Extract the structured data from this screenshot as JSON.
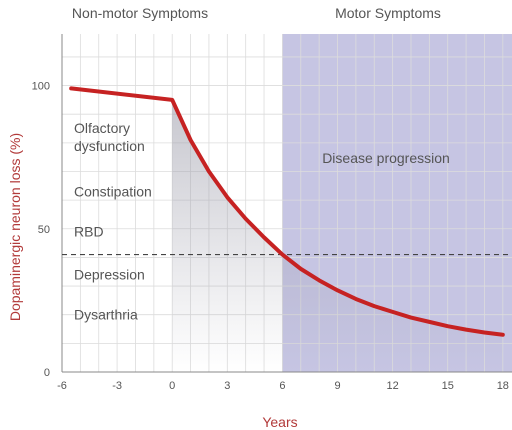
{
  "chart_data": {
    "type": "line",
    "xlabel": "Years",
    "ylabel": "Dopaminergic neuron loss (%)",
    "xlim": [
      -6,
      18.5
    ],
    "ylim": [
      0,
      118
    ],
    "x_ticks": [
      -6,
      -3,
      0,
      3,
      6,
      9,
      12,
      15,
      18
    ],
    "y_ticks": [
      0,
      50,
      100
    ],
    "grid": true,
    "phase_labels": [
      "Non-motor Symptoms",
      "Motor Symptoms"
    ],
    "shaded_region": {
      "x_start": 6,
      "x_end": 18.5,
      "label": "Disease progression"
    },
    "threshold_line": {
      "y": 41
    },
    "symptoms": [
      {
        "label": "Olfactory dysfunction",
        "lines": [
          "Olfactory",
          "dysfunction"
        ],
        "y": 82
      },
      {
        "label": "Constipation",
        "lines": [
          "Constipation"
        ],
        "y": 63
      },
      {
        "label": "RBD",
        "lines": [
          "RBD"
        ],
        "y": 49
      },
      {
        "label": "Depression",
        "lines": [
          "Depression"
        ],
        "y": 34
      },
      {
        "label": "Dysarthria",
        "lines": [
          "Dysarthria"
        ],
        "y": 20
      }
    ],
    "series": [
      {
        "x": [
          -5.5,
          0,
          1,
          2,
          3,
          4,
          5,
          6,
          7,
          8,
          9,
          10,
          11,
          12,
          13,
          14,
          15,
          16,
          17,
          18
        ],
        "y": [
          99,
          95,
          81,
          70,
          61,
          53.5,
          47,
          41,
          36,
          32,
          28.5,
          25.5,
          23,
          21,
          19,
          17.5,
          16,
          14.8,
          13.8,
          13
        ]
      }
    ],
    "colors": {
      "curve": "#c62222",
      "axis_label": "#b23a3a",
      "shade": "#c6c5e3",
      "grid": "#dcdcdc",
      "text": "#555555"
    }
  }
}
